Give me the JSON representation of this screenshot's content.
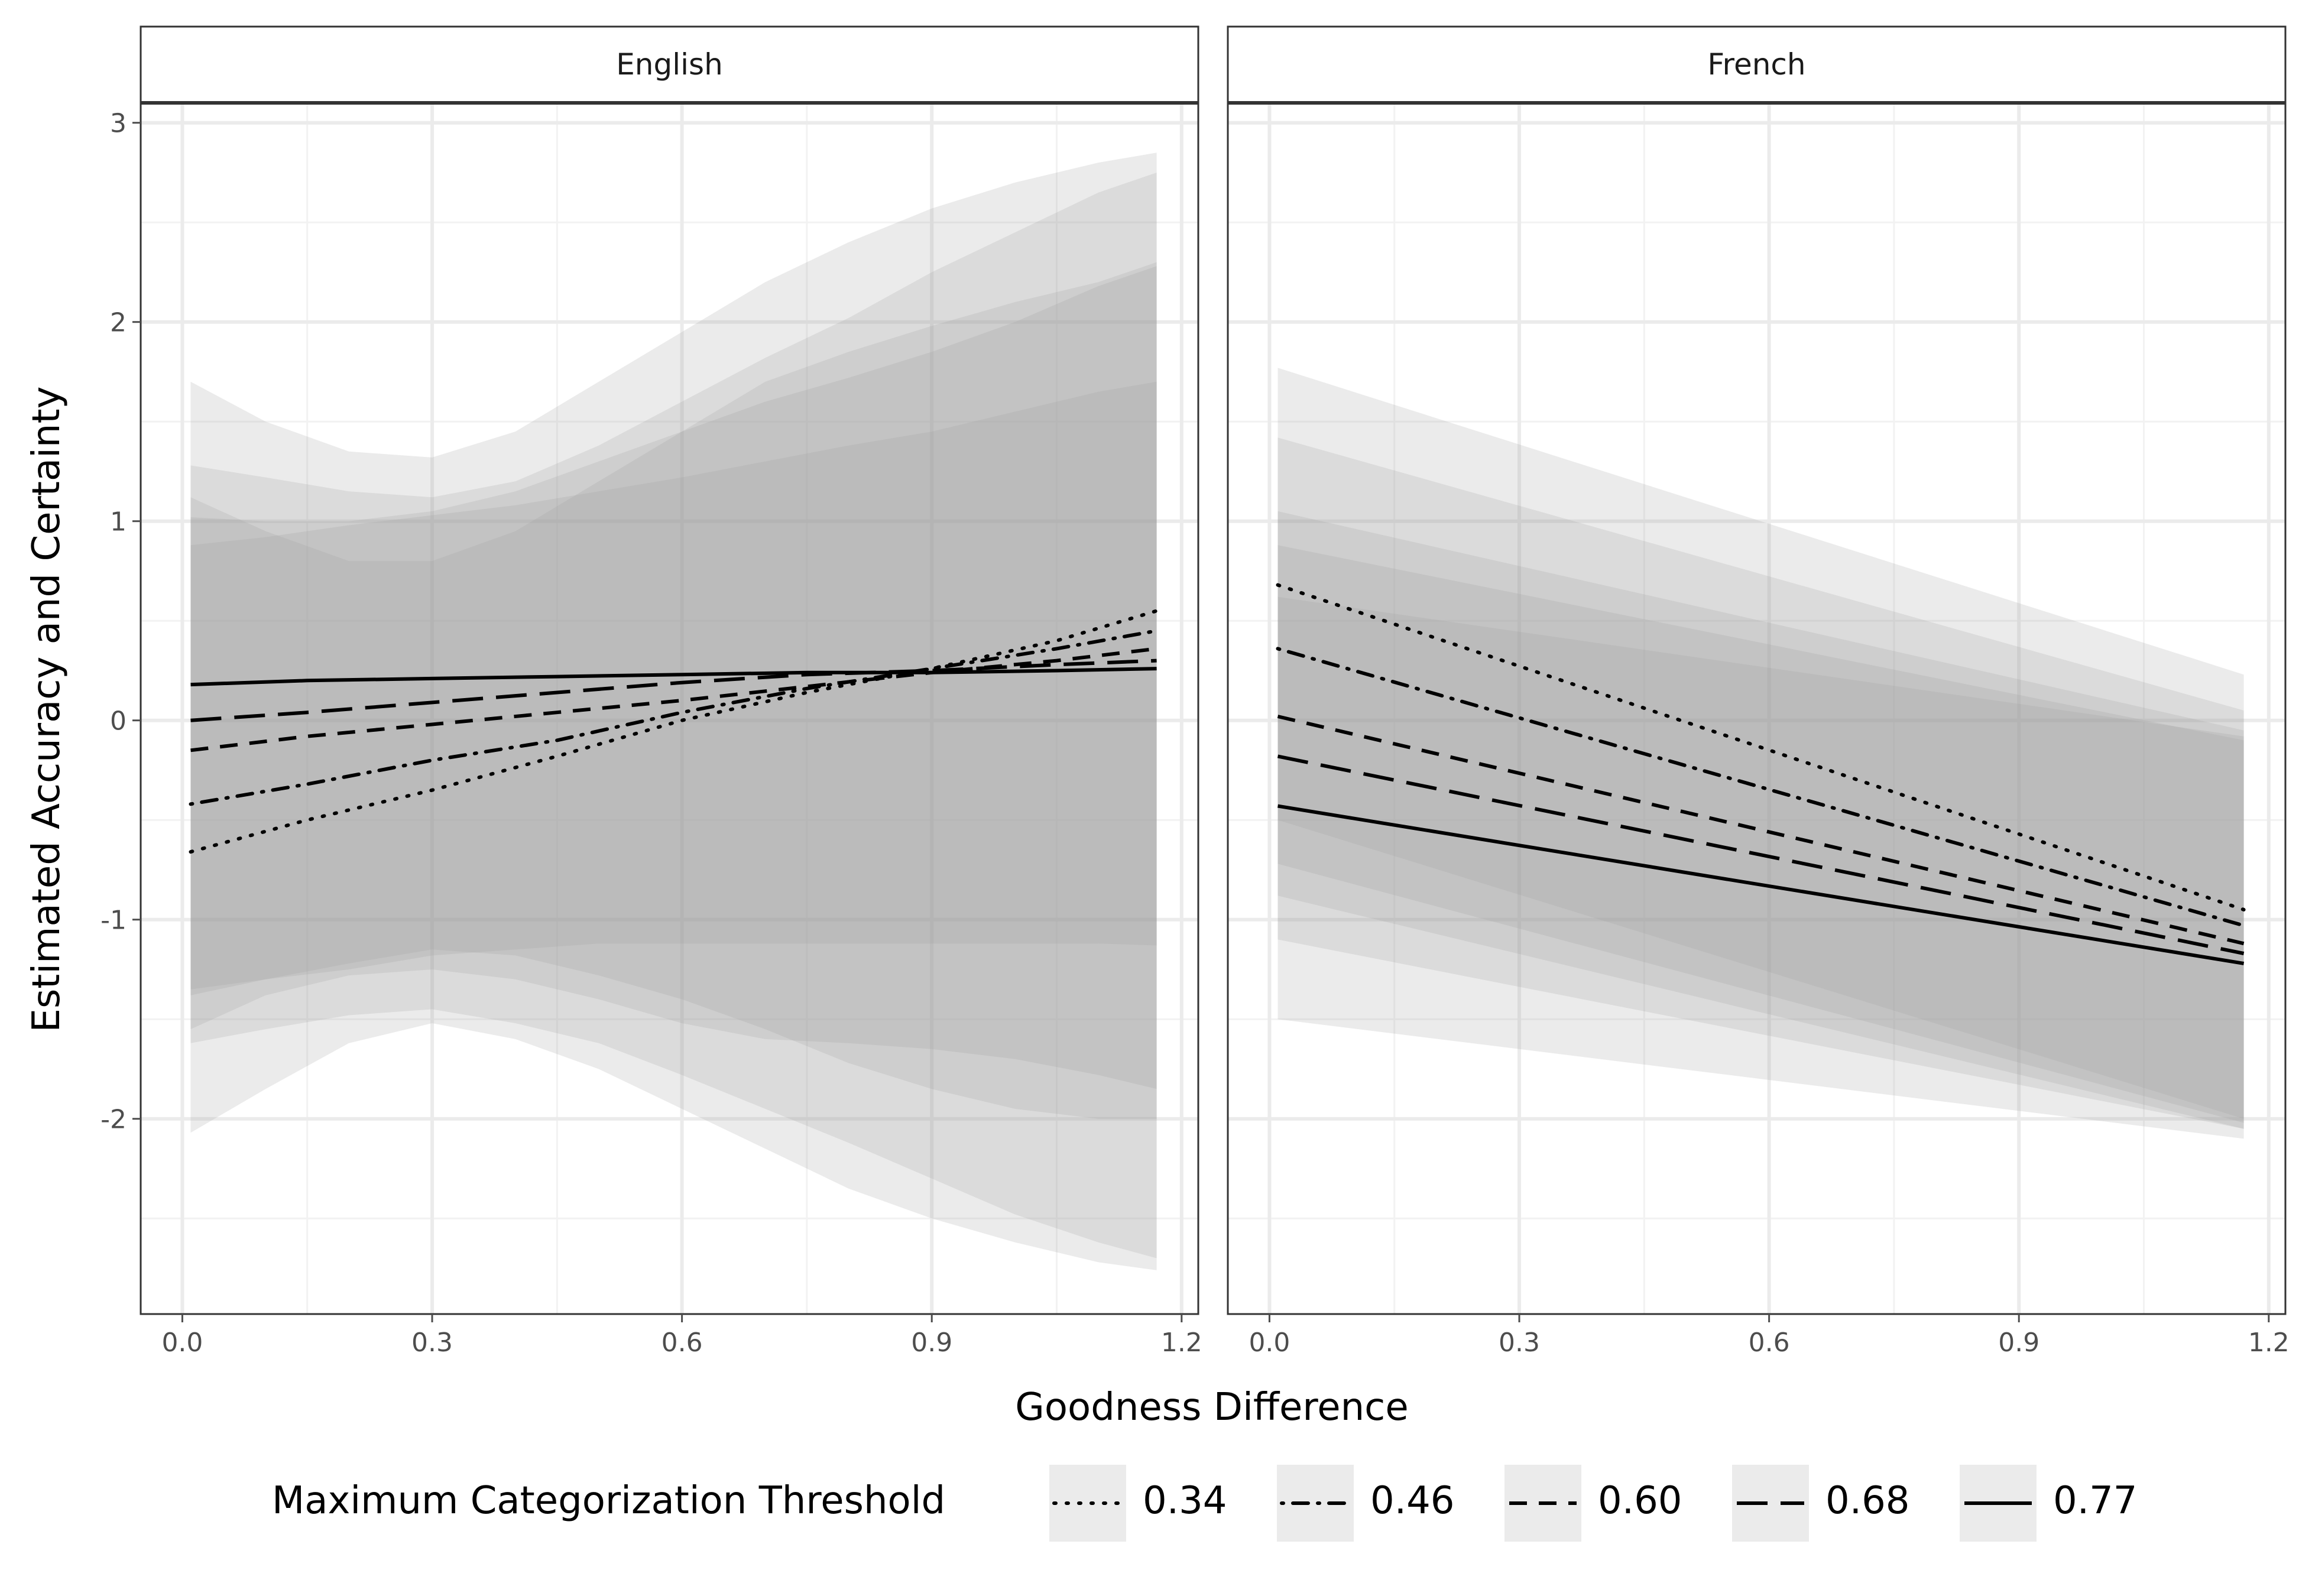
{
  "chart_data": {
    "type": "line",
    "xlabel": "Goodness Difference",
    "ylabel": "Estimated Accuracy and Certainty",
    "xlim": [
      -0.05,
      1.22
    ],
    "ylim": [
      -2.98,
      3.1
    ],
    "xticks": [
      0.0,
      0.3,
      0.6,
      0.9,
      1.2
    ],
    "xtick_labels": [
      "0.0",
      "0.3",
      "0.6",
      "0.9",
      "1.2"
    ],
    "yticks": [
      -2,
      -1,
      0,
      1,
      2,
      3
    ],
    "ytick_labels": [
      "-2",
      "-1",
      "0",
      "1",
      "2",
      "3"
    ],
    "grid": true,
    "legend": {
      "title": "Maximum Categorization Threshold",
      "position": "bottom",
      "entries": [
        {
          "label": "0.34",
          "dash": "dotted"
        },
        {
          "label": "0.46",
          "dash": "dotdash"
        },
        {
          "label": "0.60",
          "dash": "dashed"
        },
        {
          "label": "0.68",
          "dash": "longdash"
        },
        {
          "label": "0.77",
          "dash": "solid"
        }
      ]
    },
    "panels": [
      {
        "title": "English",
        "series": [
          {
            "name": "0.34",
            "dash": "dotted",
            "x": [
              0.01,
              0.15,
              0.3,
              0.45,
              0.6,
              0.75,
              0.9,
              1.05,
              1.17
            ],
            "y": [
              -0.66,
              -0.5,
              -0.35,
              -0.18,
              0.0,
              0.14,
              0.26,
              0.4,
              0.55
            ]
          },
          {
            "name": "0.46",
            "dash": "dotdash",
            "x": [
              0.01,
              0.15,
              0.3,
              0.45,
              0.6,
              0.75,
              0.9,
              1.05,
              1.17
            ],
            "y": [
              -0.42,
              -0.32,
              -0.2,
              -0.1,
              0.04,
              0.16,
              0.26,
              0.36,
              0.45
            ]
          },
          {
            "name": "0.60",
            "dash": "dashed",
            "x": [
              0.01,
              0.15,
              0.3,
              0.45,
              0.6,
              0.75,
              0.9,
              1.05,
              1.17
            ],
            "y": [
              -0.15,
              -0.08,
              -0.02,
              0.04,
              0.1,
              0.17,
              0.24,
              0.3,
              0.36
            ]
          },
          {
            "name": "0.68",
            "dash": "longdash",
            "x": [
              0.01,
              0.15,
              0.3,
              0.45,
              0.6,
              0.75,
              0.9,
              1.05,
              1.17
            ],
            "y": [
              0.0,
              0.04,
              0.09,
              0.14,
              0.19,
              0.23,
              0.25,
              0.28,
              0.3
            ]
          },
          {
            "name": "0.77",
            "dash": "solid",
            "x": [
              0.01,
              0.15,
              0.3,
              0.45,
              0.6,
              0.75,
              0.9,
              1.05,
              1.17
            ],
            "y": [
              0.18,
              0.2,
              0.21,
              0.22,
              0.23,
              0.24,
              0.24,
              0.25,
              0.26
            ]
          }
        ],
        "bands": [
          {
            "name": "0.34",
            "x": [
              0.01,
              0.1,
              0.2,
              0.3,
              0.4,
              0.5,
              0.6,
              0.7,
              0.8,
              0.9,
              1.0,
              1.1,
              1.17
            ],
            "upper": [
              1.7,
              1.5,
              1.35,
              1.32,
              1.45,
              1.7,
              1.95,
              2.2,
              2.4,
              2.57,
              2.7,
              2.8,
              2.85
            ],
            "lower": [
              -2.07,
              -1.85,
              -1.62,
              -1.52,
              -1.6,
              -1.75,
              -1.95,
              -2.15,
              -2.35,
              -2.5,
              -2.62,
              -2.72,
              -2.76
            ]
          },
          {
            "name": "0.46",
            "x": [
              0.01,
              0.1,
              0.2,
              0.3,
              0.4,
              0.5,
              0.6,
              0.7,
              0.8,
              0.9,
              1.0,
              1.1,
              1.17
            ],
            "upper": [
              1.28,
              1.22,
              1.15,
              1.12,
              1.2,
              1.38,
              1.6,
              1.82,
              2.02,
              2.25,
              2.45,
              2.65,
              2.75
            ],
            "lower": [
              -1.62,
              -1.55,
              -1.48,
              -1.45,
              -1.52,
              -1.62,
              -1.78,
              -1.95,
              -2.12,
              -2.3,
              -2.48,
              -2.62,
              -2.7
            ]
          },
          {
            "name": "0.60",
            "x": [
              0.01,
              0.1,
              0.2,
              0.3,
              0.4,
              0.5,
              0.6,
              0.7,
              0.8,
              0.9,
              1.0,
              1.1,
              1.17
            ],
            "upper": [
              1.12,
              0.95,
              0.8,
              0.8,
              0.95,
              1.2,
              1.45,
              1.7,
              1.85,
              1.98,
              2.1,
              2.2,
              2.3
            ],
            "lower": [
              -1.55,
              -1.38,
              -1.28,
              -1.25,
              -1.3,
              -1.4,
              -1.52,
              -1.6,
              -1.62,
              -1.65,
              -1.7,
              -1.78,
              -1.85
            ]
          },
          {
            "name": "0.68",
            "x": [
              0.01,
              0.1,
              0.2,
              0.3,
              0.4,
              0.5,
              0.6,
              0.7,
              0.8,
              0.9,
              1.0,
              1.1,
              1.17
            ],
            "upper": [
              1.02,
              1.0,
              1.0,
              1.05,
              1.15,
              1.3,
              1.45,
              1.6,
              1.72,
              1.85,
              2.0,
              2.18,
              2.28
            ],
            "lower": [
              -1.38,
              -1.3,
              -1.22,
              -1.15,
              -1.18,
              -1.28,
              -1.4,
              -1.55,
              -1.72,
              -1.85,
              -1.95,
              -2.0,
              -2.0
            ]
          },
          {
            "name": "0.77",
            "x": [
              0.01,
              0.1,
              0.2,
              0.3,
              0.4,
              0.5,
              0.6,
              0.7,
              0.8,
              0.9,
              1.0,
              1.1,
              1.17
            ],
            "upper": [
              0.88,
              0.92,
              0.98,
              1.03,
              1.08,
              1.15,
              1.22,
              1.3,
              1.38,
              1.45,
              1.55,
              1.65,
              1.7
            ],
            "lower": [
              -1.35,
              -1.3,
              -1.25,
              -1.18,
              -1.15,
              -1.12,
              -1.12,
              -1.12,
              -1.12,
              -1.12,
              -1.12,
              -1.12,
              -1.13
            ]
          }
        ]
      },
      {
        "title": "French",
        "series": [
          {
            "name": "0.34",
            "dash": "dotted",
            "x": [
              0.01,
              1.17
            ],
            "y": [
              0.68,
              -0.95
            ]
          },
          {
            "name": "0.46",
            "dash": "dotdash",
            "x": [
              0.01,
              1.17
            ],
            "y": [
              0.36,
              -1.03
            ]
          },
          {
            "name": "0.60",
            "dash": "dashed",
            "x": [
              0.01,
              1.17
            ],
            "y": [
              0.02,
              -1.12
            ]
          },
          {
            "name": "0.68",
            "dash": "longdash",
            "x": [
              0.01,
              1.17
            ],
            "y": [
              -0.18,
              -1.17
            ]
          },
          {
            "name": "0.77",
            "dash": "solid",
            "x": [
              0.01,
              1.17
            ],
            "y": [
              -0.43,
              -1.22
            ]
          }
        ],
        "bands": [
          {
            "name": "0.34",
            "x": [
              0.01,
              1.17
            ],
            "upper": [
              1.77,
              0.23
            ],
            "lower": [
              -0.5,
              -2.0
            ]
          },
          {
            "name": "0.46",
            "x": [
              0.01,
              1.17
            ],
            "upper": [
              1.42,
              0.05
            ],
            "lower": [
              -0.72,
              -2.02
            ]
          },
          {
            "name": "0.60",
            "x": [
              0.01,
              1.17
            ],
            "upper": [
              1.05,
              -0.05
            ],
            "lower": [
              -0.88,
              -2.05
            ]
          },
          {
            "name": "0.68",
            "x": [
              0.01,
              1.17
            ],
            "upper": [
              0.88,
              -0.1
            ],
            "lower": [
              -1.1,
              -2.05
            ]
          },
          {
            "name": "0.77",
            "x": [
              0.01,
              1.17
            ],
            "upper": [
              0.62,
              -0.08
            ],
            "lower": [
              -1.5,
              -2.1
            ]
          }
        ]
      }
    ]
  },
  "style": {
    "panel_bg": "#ffffff",
    "grid_major": "#ebebeb",
    "grid_minor": "#f2f2f2",
    "panel_border": "#333333",
    "strip_bg": "#ffffff",
    "band_fill": "#999999",
    "band_opacity": 0.2,
    "line_color": "#000000",
    "legend_key_bg": "#ebebeb",
    "tick_color": "#4d4d4d"
  }
}
